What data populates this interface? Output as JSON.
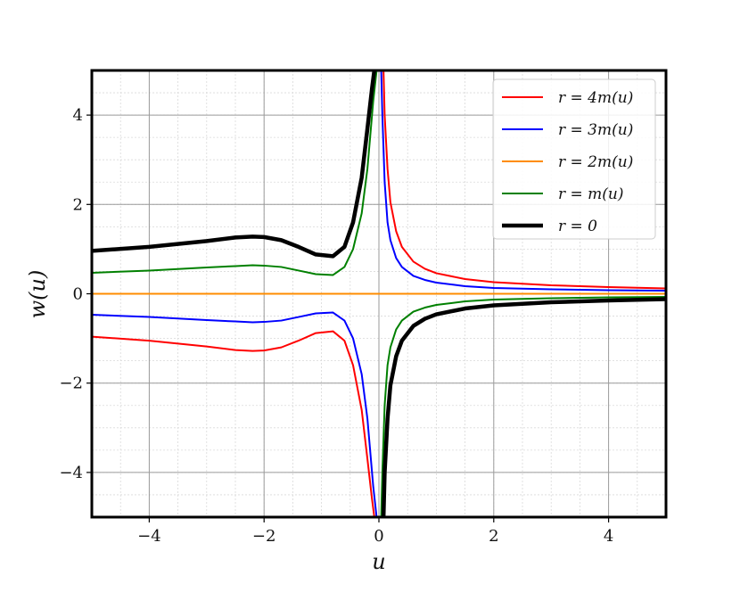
{
  "chart_data": {
    "type": "line",
    "title": "",
    "xlabel": "u",
    "ylabel": "w(u)",
    "xlim": [
      -5,
      5
    ],
    "ylim": [
      -5,
      5
    ],
    "xticks": [
      -4,
      -2,
      0,
      2,
      4
    ],
    "yticks": [
      -4,
      -2,
      0,
      2,
      4
    ],
    "xtick_labels": [
      "−4",
      "−2",
      "0",
      "2",
      "4"
    ],
    "ytick_labels": [
      "−4",
      "−2",
      "0",
      "2",
      "4"
    ],
    "grid": "major and minor",
    "legend_position": "top-right",
    "series": [
      {
        "name": "r = 4m(u)",
        "color": "#ff0000",
        "branches": [
          {
            "x": [
              -5,
              -4,
              -3,
              -2.5,
              -2.2,
              -2,
              -1.7,
              -1.4,
              -1.1,
              -0.8,
              -0.6,
              -0.45,
              -0.3,
              -0.2,
              -0.12,
              -0.08
            ],
            "y": [
              -0.96,
              -1.05,
              -1.18,
              -1.26,
              -1.28,
              -1.27,
              -1.2,
              -1.05,
              -0.88,
              -0.84,
              -1.05,
              -1.6,
              -2.6,
              -3.7,
              -4.6,
              -5
            ]
          },
          {
            "x": [
              0.08,
              0.1,
              0.15,
              0.2,
              0.3,
              0.4,
              0.6,
              0.8,
              1,
              1.5,
              2,
              3,
              4,
              5
            ],
            "y": [
              5,
              4,
              2.8,
              2.05,
              1.4,
              1.05,
              0.72,
              0.56,
              0.46,
              0.33,
              0.26,
              0.19,
              0.15,
              0.12
            ]
          }
        ]
      },
      {
        "name": "r = 3m(u)",
        "color": "#0000ff",
        "branches": [
          {
            "x": [
              -5,
              -4,
              -3,
              -2.5,
              -2.2,
              -2,
              -1.7,
              -1.4,
              -1.1,
              -0.8,
              -0.6,
              -0.45,
              -0.3,
              -0.2,
              -0.1,
              -0.04
            ],
            "y": [
              -0.47,
              -0.52,
              -0.59,
              -0.62,
              -0.64,
              -0.63,
              -0.6,
              -0.52,
              -0.44,
              -0.42,
              -0.6,
              -1.0,
              -1.8,
              -2.8,
              -4.3,
              -5
            ]
          },
          {
            "x": [
              0.04,
              0.06,
              0.1,
              0.15,
              0.2,
              0.3,
              0.4,
              0.6,
              0.8,
              1,
              1.5,
              2,
              3,
              4,
              5
            ],
            "y": [
              5,
              4,
              2.5,
              1.6,
              1.2,
              0.8,
              0.6,
              0.4,
              0.31,
              0.25,
              0.17,
              0.13,
              0.1,
              0.08,
              0.07
            ]
          }
        ]
      },
      {
        "name": "r = 2m(u)",
        "color": "#ff8c00",
        "branches": [
          {
            "x": [
              -5,
              5
            ],
            "y": [
              0,
              0
            ]
          }
        ]
      },
      {
        "name": "r = m(u)",
        "color": "#008000",
        "branches": [
          {
            "x": [
              -5,
              -4,
              -3,
              -2.5,
              -2.2,
              -2,
              -1.7,
              -1.4,
              -1.1,
              -0.8,
              -0.6,
              -0.45,
              -0.3,
              -0.2,
              -0.1,
              -0.04
            ],
            "y": [
              0.47,
              0.52,
              0.59,
              0.62,
              0.64,
              0.63,
              0.6,
              0.52,
              0.44,
              0.42,
              0.6,
              1.0,
              1.8,
              2.8,
              4.3,
              5
            ]
          },
          {
            "x": [
              0.04,
              0.06,
              0.1,
              0.15,
              0.2,
              0.3,
              0.4,
              0.6,
              0.8,
              1,
              1.5,
              2,
              3,
              4,
              5
            ],
            "y": [
              -5,
              -4,
              -2.5,
              -1.6,
              -1.2,
              -0.8,
              -0.6,
              -0.4,
              -0.31,
              -0.25,
              -0.17,
              -0.13,
              -0.1,
              -0.08,
              -0.07
            ]
          }
        ]
      },
      {
        "name": "r = 0",
        "color": "#000000",
        "branches": [
          {
            "x": [
              -5,
              -4,
              -3,
              -2.5,
              -2.2,
              -2,
              -1.7,
              -1.4,
              -1.1,
              -0.8,
              -0.6,
              -0.45,
              -0.3,
              -0.2,
              -0.12,
              -0.08
            ],
            "y": [
              0.96,
              1.05,
              1.18,
              1.26,
              1.28,
              1.27,
              1.2,
              1.05,
              0.88,
              0.84,
              1.05,
              1.6,
              2.6,
              3.7,
              4.6,
              5
            ]
          },
          {
            "x": [
              0.08,
              0.1,
              0.15,
              0.2,
              0.3,
              0.4,
              0.6,
              0.8,
              1,
              1.5,
              2,
              3,
              4,
              5
            ],
            "y": [
              -5,
              -4,
              -2.8,
              -2.05,
              -1.4,
              -1.05,
              -0.72,
              -0.56,
              -0.46,
              -0.33,
              -0.26,
              -0.19,
              -0.15,
              -0.12
            ]
          }
        ]
      }
    ]
  }
}
